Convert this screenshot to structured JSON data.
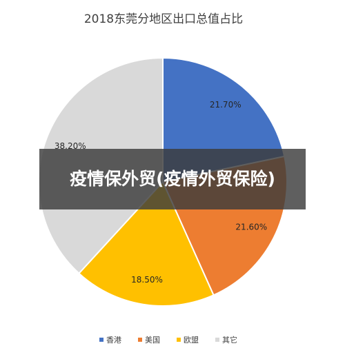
{
  "chart_data": {
    "type": "pie",
    "title": "2018东莞分地区出口总值占比",
    "categories": [
      "香港",
      "美国",
      "欧盟",
      "其它"
    ],
    "values": [
      21.7,
      21.6,
      18.5,
      38.2
    ],
    "data_labels": [
      "21.70%",
      "21.60%",
      "18.50%",
      "38.20%"
    ],
    "colors": [
      "#4472c4",
      "#ed7d31",
      "#ffc000",
      "#d9d9d9"
    ],
    "legend_position": "bottom",
    "start_angle": "top, clockwise"
  },
  "overlay": {
    "banner_text": "疫情保外贸(疫情外贸保险)"
  }
}
